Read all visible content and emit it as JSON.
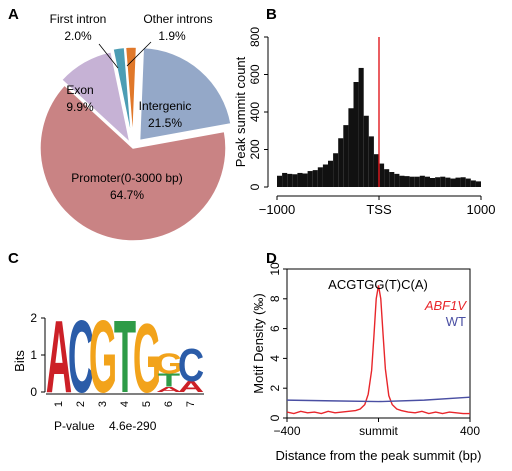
{
  "panels": {
    "a": "A",
    "b": "B",
    "c": "C",
    "d": "D"
  },
  "chart_data": [
    {
      "panel": "A",
      "type": "pie",
      "slices": [
        {
          "label": "Intergenic",
          "value": 21.5,
          "value_text": "21.5%",
          "color": "#94a8c8"
        },
        {
          "label": "Promoter(0-3000 bp)",
          "value": 64.7,
          "value_text": "64.7%",
          "color": "#c98384"
        },
        {
          "label": "Exon",
          "value": 9.9,
          "value_text": "9.9%",
          "color": "#c6b2d5"
        },
        {
          "label": "First intron",
          "value": 2.0,
          "value_text": "2.0%",
          "color": "#4c9db4"
        },
        {
          "label": "Other introns",
          "value": 1.9,
          "value_text": "1.9%",
          "color": "#e0782a"
        }
      ]
    },
    {
      "panel": "B",
      "type": "bar",
      "ylabel": "Peak summit count",
      "ylim": [
        0,
        800
      ],
      "yticks": [
        "0",
        "200",
        "400",
        "600",
        "800"
      ],
      "xlim": [
        -1000,
        1000
      ],
      "xticks": [
        "−1000",
        "TSS",
        "1000"
      ],
      "tick_values": [
        -1000,
        0,
        1000
      ],
      "bin_width": 50,
      "values": [
        60,
        75,
        70,
        68,
        75,
        72,
        85,
        90,
        105,
        120,
        140,
        180,
        260,
        330,
        420,
        560,
        635,
        380,
        270,
        175,
        125,
        95,
        80,
        70,
        60,
        58,
        55,
        55,
        60,
        55,
        48,
        52,
        55,
        50,
        45,
        50,
        52,
        45,
        35,
        30
      ],
      "tss_line_color": "#e0191e",
      "bar_color": "#111111"
    },
    {
      "panel": "C",
      "type": "sequence-logo",
      "ylabel": "Bits",
      "ylim": [
        0,
        2
      ],
      "yticks": [
        "0",
        "1",
        "2"
      ],
      "positions": [
        "1",
        "2",
        "3",
        "4",
        "5",
        "6",
        "7"
      ],
      "columns": [
        [
          {
            "letter": "A",
            "height": 2.0,
            "color": "#cc2027"
          }
        ],
        [
          {
            "letter": "C",
            "height": 2.0,
            "color": "#2b5ca8"
          }
        ],
        [
          {
            "letter": "G",
            "height": 2.0,
            "color": "#f2a31b"
          }
        ],
        [
          {
            "letter": "T",
            "height": 2.0,
            "color": "#2e9b47"
          }
        ],
        [
          {
            "letter": "G",
            "height": 1.9,
            "color": "#f2a31b"
          }
        ],
        [
          {
            "letter": "A",
            "height": 0.15,
            "color": "#cc2027"
          },
          {
            "letter": "T",
            "height": 0.35,
            "color": "#2e9b47"
          },
          {
            "letter": "G",
            "height": 0.55,
            "color": "#f2a31b"
          }
        ],
        [
          {
            "letter": "A",
            "height": 0.3,
            "color": "#cc2027"
          },
          {
            "letter": "C",
            "height": 0.9,
            "color": "#2b5ca8"
          }
        ]
      ],
      "pvalue_label": "P-value",
      "pvalue": "4.6e-290"
    },
    {
      "panel": "D",
      "type": "line",
      "title": "ACGTGG(T)C(A)",
      "ylabel": "Motif Density (‰)",
      "xlabel": "Distance from the peak summit (bp)",
      "ylim": [
        0,
        10
      ],
      "yticks": [
        "0",
        "2",
        "4",
        "6",
        "8",
        "10"
      ],
      "xlim": [
        -400,
        400
      ],
      "xticks": [
        "−400",
        "summit",
        "400"
      ],
      "tick_values": [
        -400,
        0,
        400
      ],
      "series": [
        {
          "name": "ABF1V",
          "color": "#e8262b",
          "x": [
            -400,
            -370,
            -340,
            -310,
            -280,
            -250,
            -220,
            -190,
            -160,
            -130,
            -100,
            -80,
            -60,
            -45,
            -30,
            -20,
            -10,
            0,
            10,
            20,
            30,
            45,
            60,
            80,
            100,
            130,
            160,
            190,
            220,
            250,
            280,
            310,
            340,
            370,
            400
          ],
          "y": [
            0.4,
            0.3,
            0.45,
            0.35,
            0.4,
            0.3,
            0.45,
            0.35,
            0.4,
            0.45,
            0.5,
            0.6,
            0.9,
            1.6,
            3.2,
            5.5,
            8.0,
            8.9,
            8.0,
            5.6,
            3.3,
            1.5,
            0.9,
            0.6,
            0.5,
            0.4,
            0.35,
            0.45,
            0.3,
            0.4,
            0.3,
            0.4,
            0.35,
            0.3,
            0.3
          ]
        },
        {
          "name": "WT",
          "color": "#4a4fa3",
          "x": [
            -400,
            -200,
            0,
            200,
            400
          ],
          "y": [
            1.2,
            1.15,
            1.1,
            1.2,
            1.4
          ]
        }
      ]
    }
  ]
}
